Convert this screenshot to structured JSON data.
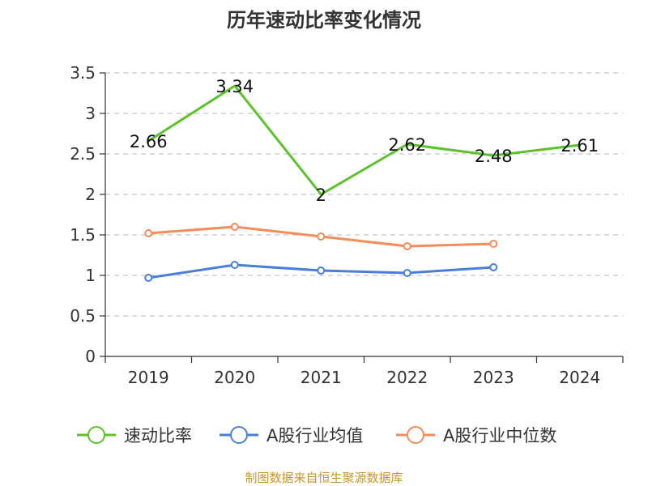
{
  "chart_data": {
    "type": "line",
    "title": "历年速动比率变化情况",
    "xlabel": "",
    "ylabel": "",
    "categories": [
      "2019",
      "2020",
      "2021",
      "2022",
      "2023",
      "2024"
    ],
    "ylim": [
      0,
      3.5
    ],
    "yticks": [
      "0",
      "0.5",
      "1",
      "1.5",
      "2",
      "2.5",
      "3",
      "3.5"
    ],
    "grid": true,
    "legend_position": "bottom",
    "series": [
      {
        "name": "速动比率",
        "color": "#5cc12b",
        "values": [
          2.66,
          3.34,
          2.0,
          2.62,
          2.48,
          2.61
        ],
        "data_labels": [
          "2.66",
          "3.34",
          "2",
          "2.62",
          "2.48",
          "2.61"
        ]
      },
      {
        "name": "A股行业均值",
        "color": "#4a7fd9",
        "values": [
          0.97,
          1.13,
          1.06,
          1.03,
          1.1,
          null
        ]
      },
      {
        "name": "A股行业中位数",
        "color": "#f68c5a",
        "values": [
          1.52,
          1.6,
          1.48,
          1.36,
          1.39,
          null
        ]
      }
    ]
  },
  "source_text": "制图数据来自恒生聚源数据库",
  "source_color": "#c8962e"
}
